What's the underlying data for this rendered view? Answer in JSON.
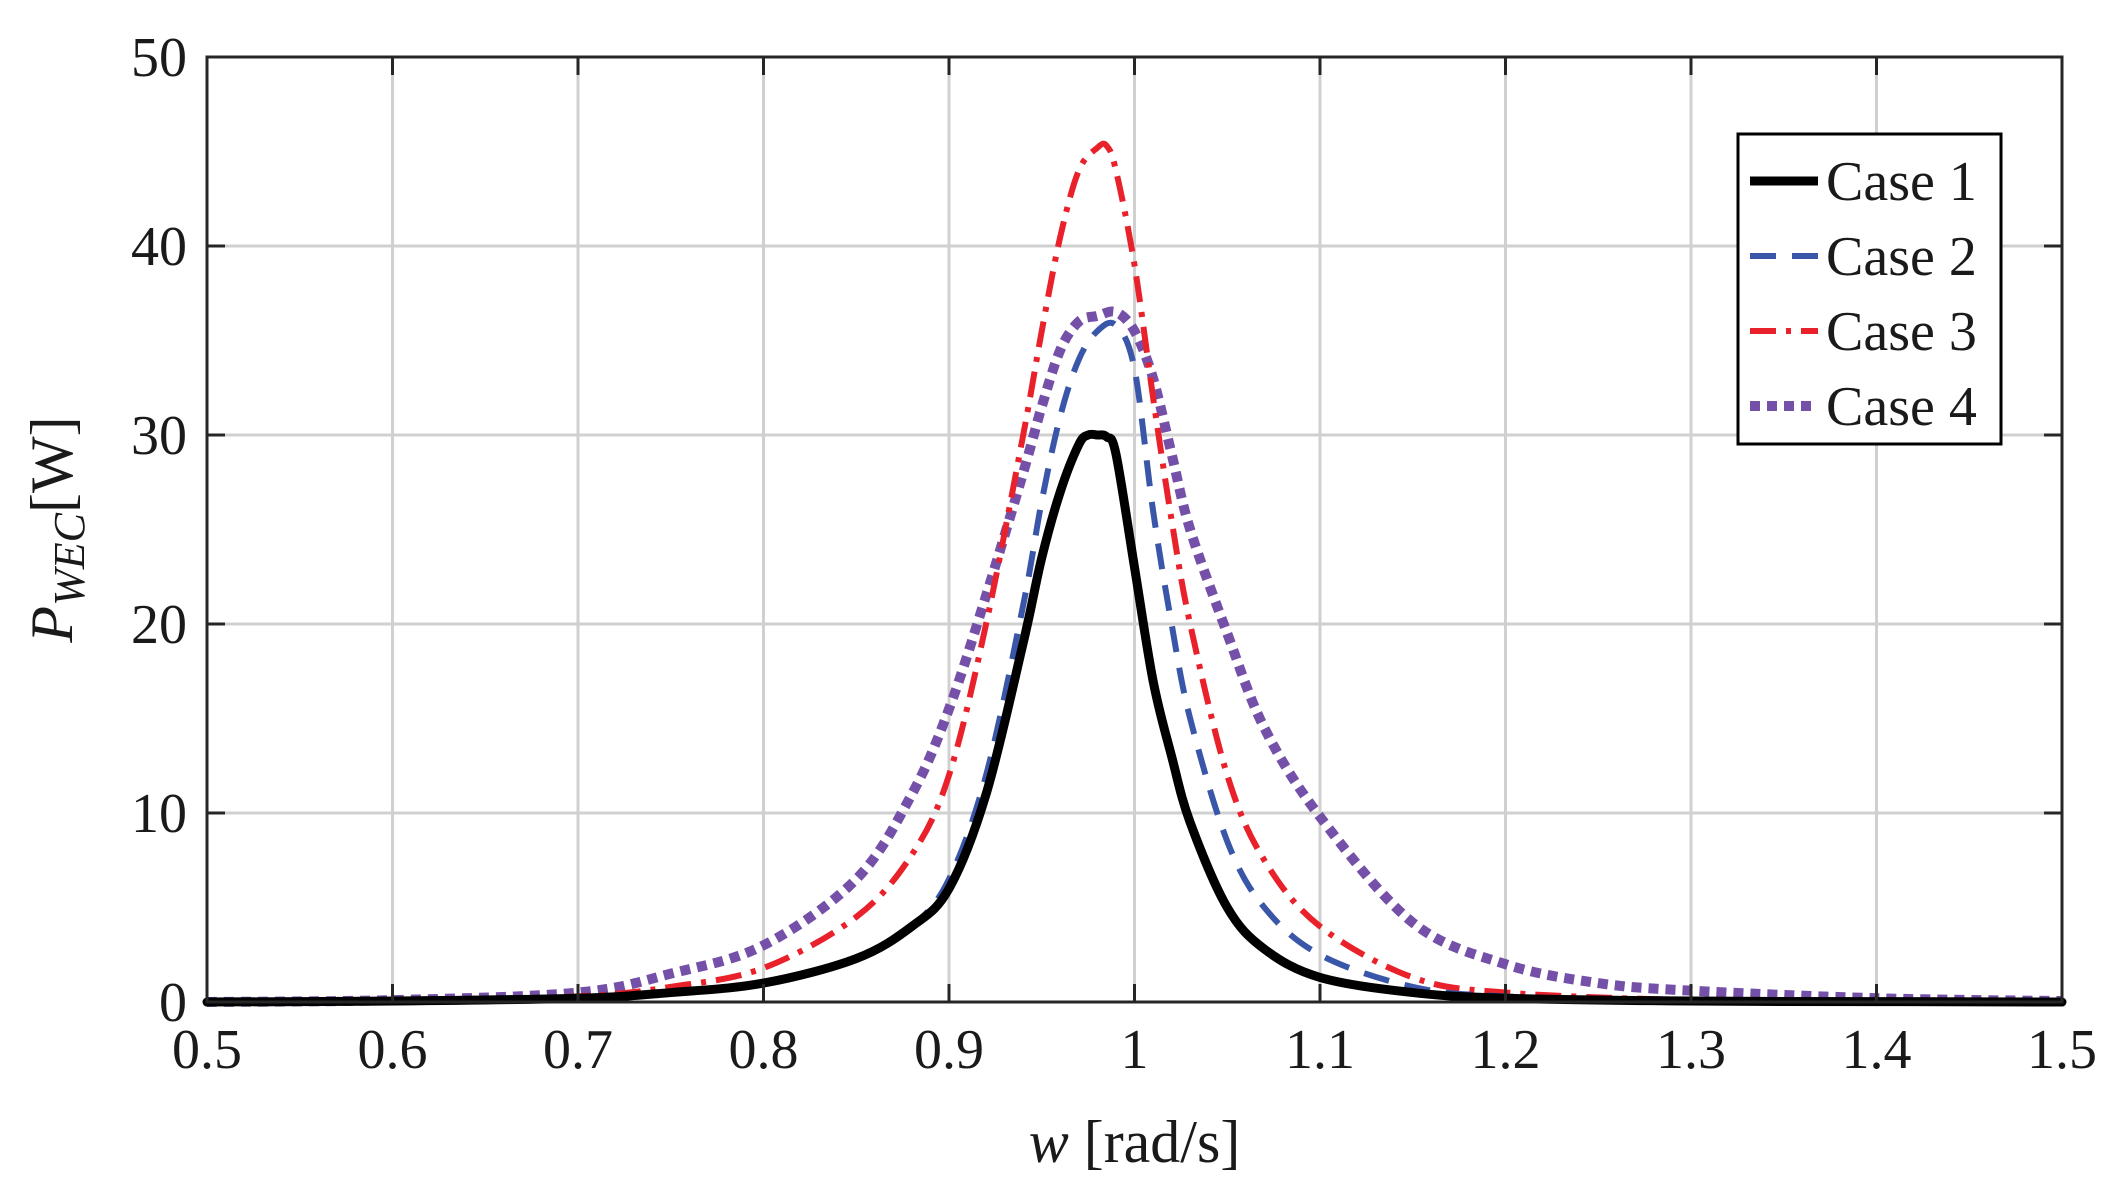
{
  "chart_data": {
    "type": "line",
    "xlabel_italic": "w",
    "xlabel_rest": "[rad/s]",
    "ylabel_main": "P",
    "ylabel_sub": "WEC",
    "ylabel_unit": "[W]",
    "xlim": [
      0.5,
      1.5
    ],
    "ylim": [
      0,
      50
    ],
    "xticks": [
      "0.5",
      "0.6",
      "0.7",
      "0.8",
      "0.9",
      "1",
      "1.1",
      "1.2",
      "1.3",
      "1.4",
      "1.5"
    ],
    "yticks": [
      "0",
      "10",
      "20",
      "30",
      "40",
      "50"
    ],
    "grid": true,
    "legend_position": "top-right",
    "series": [
      {
        "name": "Case 1",
        "color": "#000000",
        "style": "solid",
        "x": [
          0.5,
          0.6,
          0.7,
          0.75,
          0.8,
          0.85,
          0.88,
          0.9,
          0.92,
          0.94,
          0.95,
          0.96,
          0.97,
          0.975,
          0.98,
          0.985,
          0.99,
          1.0,
          1.01,
          1.02,
          1.03,
          1.05,
          1.07,
          1.1,
          1.15,
          1.2,
          1.3,
          1.4,
          1.5
        ],
        "y": [
          0.0,
          0.05,
          0.2,
          0.5,
          1.0,
          2.3,
          4.0,
          6.0,
          11.0,
          19.0,
          23.5,
          27.0,
          29.5,
          30.0,
          30.0,
          29.9,
          29.0,
          23.0,
          17.0,
          13.0,
          9.5,
          5.0,
          2.8,
          1.3,
          0.5,
          0.2,
          0.05,
          0.02,
          0.0
        ]
      },
      {
        "name": "Case 2",
        "color": "#3a56a8",
        "style": "dashed",
        "x": [
          0.5,
          0.6,
          0.7,
          0.75,
          0.8,
          0.85,
          0.88,
          0.9,
          0.92,
          0.94,
          0.95,
          0.96,
          0.97,
          0.98,
          0.99,
          1.0,
          1.01,
          1.02,
          1.03,
          1.05,
          1.07,
          1.1,
          1.15,
          1.2,
          1.3,
          1.4,
          1.5
        ],
        "y": [
          0.0,
          0.05,
          0.2,
          0.5,
          1.0,
          2.3,
          4.0,
          6.5,
          12.0,
          21.0,
          26.5,
          31.0,
          34.0,
          35.5,
          35.8,
          33.5,
          26.0,
          20.0,
          15.0,
          8.5,
          5.0,
          2.5,
          0.8,
          0.3,
          0.05,
          0.02,
          0.0
        ]
      },
      {
        "name": "Case 3",
        "color": "#e8212a",
        "style": "dashdot",
        "x": [
          0.5,
          0.6,
          0.7,
          0.75,
          0.8,
          0.85,
          0.88,
          0.9,
          0.92,
          0.94,
          0.95,
          0.96,
          0.97,
          0.98,
          0.985,
          0.99,
          1.0,
          1.01,
          1.02,
          1.03,
          1.05,
          1.07,
          1.1,
          1.15,
          1.2,
          1.3,
          1.4,
          1.5
        ],
        "y": [
          0.0,
          0.05,
          0.3,
          0.8,
          1.8,
          4.5,
          7.8,
          12.0,
          20.0,
          30.0,
          35.5,
          40.5,
          44.0,
          45.2,
          45.3,
          44.0,
          39.0,
          32.0,
          25.5,
          20.0,
          12.0,
          7.5,
          4.0,
          1.3,
          0.5,
          0.1,
          0.03,
          0.0
        ]
      },
      {
        "name": "Case 4",
        "color": "#7550a8",
        "style": "dotted",
        "x": [
          0.5,
          0.6,
          0.7,
          0.75,
          0.8,
          0.85,
          0.88,
          0.9,
          0.92,
          0.94,
          0.95,
          0.96,
          0.97,
          0.98,
          0.99,
          1.0,
          1.01,
          1.02,
          1.03,
          1.05,
          1.07,
          1.1,
          1.15,
          1.2,
          1.25,
          1.3,
          1.4,
          1.5
        ],
        "y": [
          0.0,
          0.1,
          0.5,
          1.5,
          3.0,
          6.5,
          11.0,
          15.5,
          21.5,
          28.0,
          31.5,
          34.5,
          36.0,
          36.3,
          36.5,
          35.5,
          33.0,
          29.0,
          25.0,
          19.5,
          14.5,
          9.8,
          4.2,
          2.0,
          1.0,
          0.6,
          0.2,
          0.05
        ]
      }
    ]
  }
}
